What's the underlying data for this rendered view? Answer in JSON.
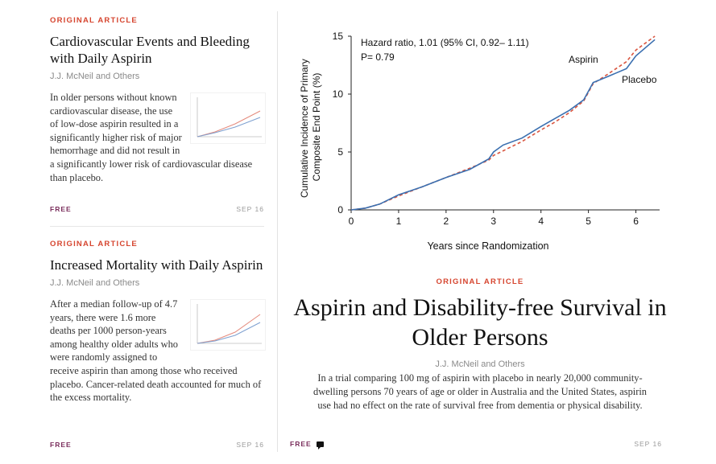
{
  "articles": [
    {
      "kicker": "ORIGINAL ARTICLE",
      "title": "Cardiovascular Events and Bleeding with Daily Aspirin",
      "byline": "J.J. McNeil and Others",
      "summary": "In older persons without known cardiovascular disease, the use of low-dose aspirin resulted in a significantly higher risk of major hemorrhage and did not result in a significantly lower risk of cardiovascular disease than placebo.",
      "access": "FREE",
      "date": "SEP 16"
    },
    {
      "kicker": "ORIGINAL ARTICLE",
      "title": "Increased Mortality with Daily Aspirin",
      "byline": "J.J. McNeil and Others",
      "summary": "After a median follow-up of 4.7 years, there were 1.6 more deaths per 1000 person-years among healthy older adults who were randomly assigned to receive aspirin than among those who received placebo. Cancer-related death accounted for much of the excess mortality.",
      "access": "FREE",
      "date": "SEP 16"
    }
  ],
  "feature": {
    "kicker": "ORIGINAL ARTICLE",
    "title": "Aspirin and Disability-free Survival in Older Persons",
    "byline": "J.J. McNeil and Others",
    "summary": "In a trial comparing 100 mg of aspirin with placebo in nearly 20,000 community-dwelling persons 70 years of age or older in Australia and the United States, aspirin use had no effect on the rate of survival free from dementia or physical disability.",
    "access": "FREE",
    "date": "SEP 16"
  },
  "chart_data": {
    "type": "line",
    "title": "",
    "xlabel": "Years since Randomization",
    "ylabel": "Cumulative Incidence of Primary Composite End Point (%)",
    "xlim": [
      0,
      6.5
    ],
    "ylim": [
      0,
      15
    ],
    "xticks": [
      0,
      1,
      2,
      3,
      4,
      5,
      6
    ],
    "yticks": [
      0,
      5,
      10,
      15
    ],
    "annotation_line1": "Hazard ratio, 1.01 (95% CI, 0.92– 1.11)",
    "annotation_line2": "P= 0.79",
    "series": [
      {
        "name": "Aspirin",
        "color": "#d9553f",
        "dashed": true,
        "x": [
          0,
          0.3,
          0.6,
          1.0,
          1.5,
          2.0,
          2.5,
          2.9,
          3.0,
          3.2,
          3.6,
          4.0,
          4.3,
          4.6,
          4.9,
          5.1,
          5.4,
          5.8,
          6.0,
          6.4
        ],
        "y": [
          0,
          0.15,
          0.5,
          1.2,
          2.0,
          2.8,
          3.6,
          4.3,
          4.7,
          5.1,
          5.9,
          6.9,
          7.6,
          8.4,
          9.4,
          10.9,
          11.7,
          12.8,
          13.8,
          15.0
        ]
      },
      {
        "name": "Placebo",
        "color": "#3a6fb0",
        "dashed": false,
        "x": [
          0,
          0.3,
          0.6,
          1.0,
          1.5,
          2.0,
          2.5,
          2.9,
          3.0,
          3.2,
          3.6,
          4.0,
          4.3,
          4.6,
          4.9,
          5.1,
          5.4,
          5.8,
          6.0,
          6.4
        ],
        "y": [
          0,
          0.15,
          0.5,
          1.3,
          2.0,
          2.8,
          3.5,
          4.4,
          5.0,
          5.6,
          6.2,
          7.2,
          7.9,
          8.6,
          9.5,
          11.0,
          11.5,
          12.2,
          13.3,
          14.7
        ]
      }
    ]
  }
}
